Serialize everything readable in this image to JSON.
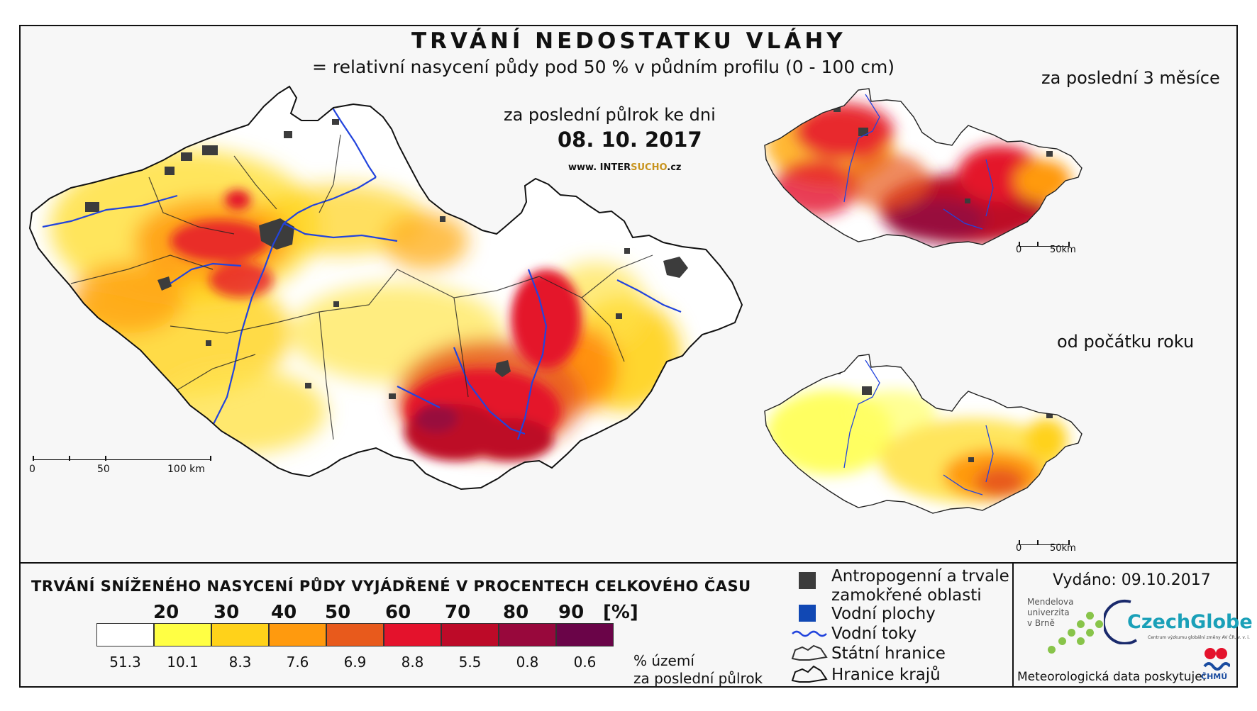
{
  "title": "TRVÁNÍ NEDOSTATKU VLÁHY",
  "subtitle": "= relativní nasycení půdy pod 50 % v půdním profilu (0 - 100 cm)",
  "period_label": "za poslední půlrok ke dni",
  "date": "08. 10. 2017",
  "website": {
    "prefix": "www. INTER",
    "accent": "SUCHO",
    "suffix": ".cz"
  },
  "insets": [
    {
      "title": "za poslední 3 měsíce",
      "scale": [
        "0",
        "50km"
      ]
    },
    {
      "title": "od počátku roku",
      "scale": [
        "0",
        "50km"
      ]
    }
  ],
  "main_scale": [
    "0",
    "50",
    "100 km"
  ],
  "legend": {
    "title": "TRVÁNÍ SNÍŽENÉHO NASYCENÍ PŮDY VYJÁDŘENÉ V PROCENTECH CELKOVÉHO ČASU",
    "thresholds": [
      "20",
      "30",
      "40",
      "50",
      "60",
      "70",
      "80",
      "90",
      "[%]"
    ],
    "classes": [
      {
        "color": "#ffffff",
        "pct": "51.3"
      },
      {
        "color": "#ffff44",
        "pct": "10.1"
      },
      {
        "color": "#ffd21a",
        "pct": "8.3"
      },
      {
        "color": "#ff9a0e",
        "pct": "7.6"
      },
      {
        "color": "#e85a1c",
        "pct": "6.9"
      },
      {
        "color": "#e4122c",
        "pct": "8.8"
      },
      {
        "color": "#bd0a28",
        "pct": "5.5"
      },
      {
        "color": "#98083c",
        "pct": "0.8"
      },
      {
        "color": "#6a0448",
        "pct": "0.6"
      }
    ],
    "pct_note_1": "% území",
    "pct_note_2": "za poslední půlrok"
  },
  "key": {
    "anthropogenic_1": "Antropogenní a trvale",
    "anthropogenic_2": "zamokřené oblasti",
    "water_bodies": "Vodní plochy",
    "water_courses": "Vodní toky",
    "state_border": "Státní hranice",
    "regional_border": "Hranice krajů"
  },
  "colors": {
    "anthropogenic": "#3c3c3c",
    "water_body": "#1148b4",
    "water_course": "#2244dd"
  },
  "issued": "Vydáno: 09.10.2017",
  "mendel": [
    "Mendelova",
    "univerzita",
    "v Brně"
  ],
  "czechglobe": "CzechGlobe",
  "czechglobe_sub": "Centrum výzkumu globální změny AV ČR, v. v. i.",
  "meteo": "Meteorologická data poskytuje:",
  "chmu": "ČHMÚ"
}
